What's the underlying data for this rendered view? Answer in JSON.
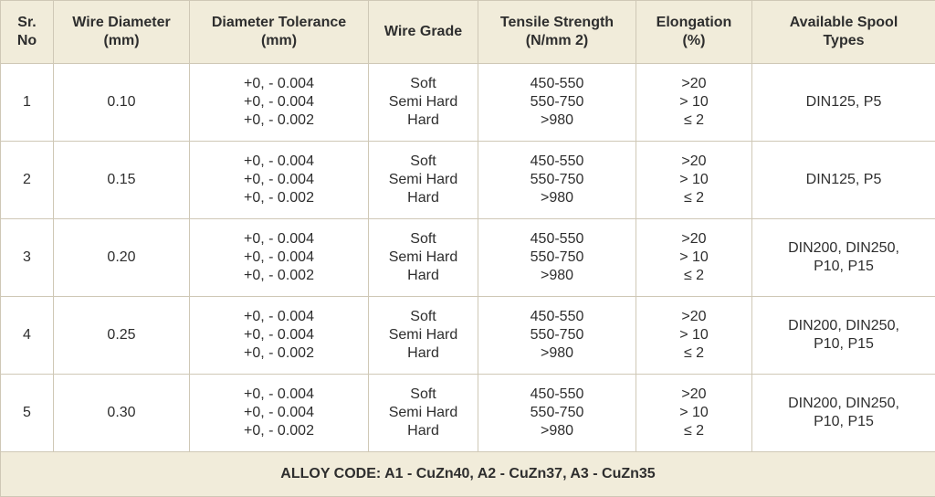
{
  "table": {
    "headers": [
      [
        "Sr.",
        "No"
      ],
      [
        "Wire Diameter",
        "(mm)"
      ],
      [
        "Diameter Tolerance",
        "(mm)"
      ],
      [
        "Wire Grade"
      ],
      [
        "Tensile Strength",
        "(N/mm 2)"
      ],
      [
        "Elongation",
        "(%)"
      ],
      [
        "Available Spool",
        "Types"
      ]
    ],
    "rows": [
      {
        "sr": "1",
        "diameter": "0.10",
        "tolerance": [
          "+0, - 0.004",
          "+0, - 0.004",
          "+0, - 0.002"
        ],
        "grade": [
          "Soft",
          "Semi Hard",
          "Hard"
        ],
        "tensile": [
          "450-550",
          "550-750",
          ">980"
        ],
        "elongation": [
          ">20",
          "> 10",
          "≤ 2"
        ],
        "spool": [
          "DIN125, P5"
        ]
      },
      {
        "sr": "2",
        "diameter": "0.15",
        "tolerance": [
          "+0, - 0.004",
          "+0, - 0.004",
          "+0, - 0.002"
        ],
        "grade": [
          "Soft",
          "Semi Hard",
          "Hard"
        ],
        "tensile": [
          "450-550",
          "550-750",
          ">980"
        ],
        "elongation": [
          ">20",
          "> 10",
          "≤ 2"
        ],
        "spool": [
          "DIN125, P5"
        ]
      },
      {
        "sr": "3",
        "diameter": "0.20",
        "tolerance": [
          "+0, - 0.004",
          "+0, - 0.004",
          "+0, - 0.002"
        ],
        "grade": [
          "Soft",
          "Semi Hard",
          "Hard"
        ],
        "tensile": [
          "450-550",
          "550-750",
          ">980"
        ],
        "elongation": [
          ">20",
          "> 10",
          "≤ 2"
        ],
        "spool": [
          "DIN200, DIN250,",
          "P10, P15"
        ]
      },
      {
        "sr": "4",
        "diameter": "0.25",
        "tolerance": [
          "+0, - 0.004",
          "+0, - 0.004",
          "+0, - 0.002"
        ],
        "grade": [
          "Soft",
          "Semi Hard",
          "Hard"
        ],
        "tensile": [
          "450-550",
          "550-750",
          ">980"
        ],
        "elongation": [
          ">20",
          "> 10",
          "≤ 2"
        ],
        "spool": [
          "DIN200, DIN250,",
          "P10, P15"
        ]
      },
      {
        "sr": "5",
        "diameter": "0.30",
        "tolerance": [
          "+0, - 0.004",
          "+0, - 0.004",
          "+0, - 0.002"
        ],
        "grade": [
          "Soft",
          "Semi Hard",
          "Hard"
        ],
        "tensile": [
          "450-550",
          "550-750",
          ">980"
        ],
        "elongation": [
          ">20",
          "> 10",
          "≤ 2"
        ],
        "spool": [
          "DIN200, DIN250,",
          "P10, P15"
        ]
      }
    ],
    "footer": "ALLOY CODE: A1 - CuZn40, A2 - CuZn37, A3 - CuZn35"
  },
  "colors": {
    "header_bg": "#f1ecda",
    "border": "#cfc8b6",
    "text": "#2e2e2e"
  }
}
